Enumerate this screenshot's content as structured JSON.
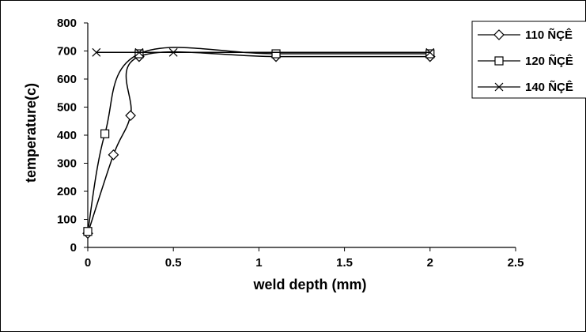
{
  "chart_data": {
    "type": "line",
    "xlabel": "weld depth (mm)",
    "ylabel": "temperature(c)",
    "xlim": [
      0,
      2.5
    ],
    "ylim": [
      0,
      800
    ],
    "x_ticks": [
      "0",
      "0.5",
      "1",
      "1.5",
      "2",
      "2.5"
    ],
    "y_ticks": [
      "0",
      "100",
      "200",
      "300",
      "400",
      "500",
      "600",
      "700",
      "800"
    ],
    "grid": false,
    "legend_position": "top-right",
    "series": [
      {
        "name": "110 ÑÇÊ",
        "marker": "diamond",
        "x": [
          0,
          0.15,
          0.25,
          0.3,
          1.1,
          2
        ],
        "y": [
          50,
          330,
          470,
          680,
          680,
          680
        ]
      },
      {
        "name": "120 ÑÇÊ",
        "marker": "square",
        "x": [
          0,
          0.1,
          0.3,
          1.1,
          2
        ],
        "y": [
          57,
          405,
          690,
          690,
          690
        ]
      },
      {
        "name": "140 ÑÇÊ",
        "marker": "x",
        "x": [
          0.05,
          0.3,
          0.5,
          2
        ],
        "y": [
          695,
          695,
          695,
          695
        ]
      }
    ]
  }
}
